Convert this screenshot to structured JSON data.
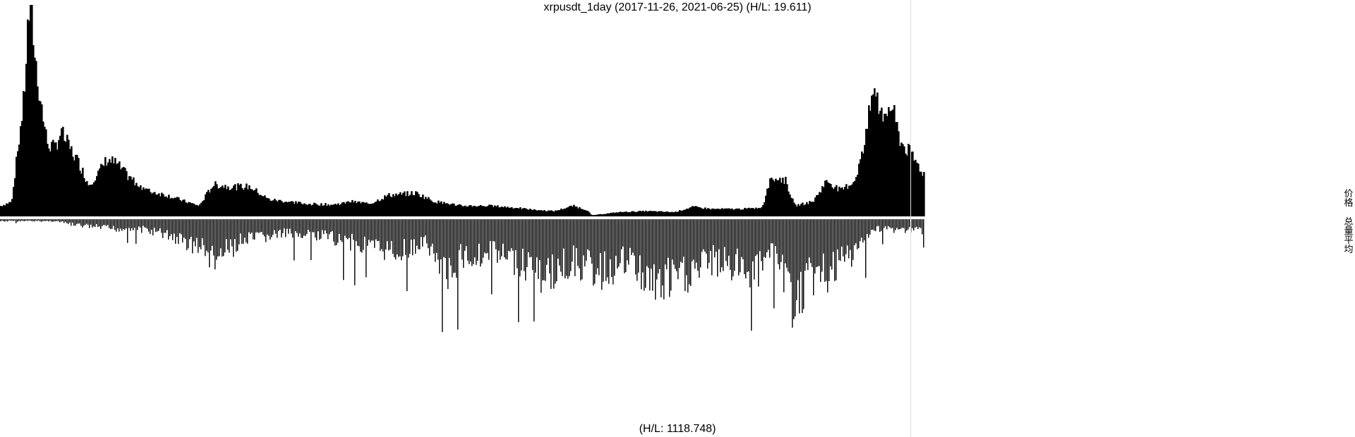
{
  "chart_data": {
    "type": "bar",
    "title": "xrpusdt_1day (2017-11-26, 2021-06-25) (H/L: 19.611)",
    "bottom_label": "(H/L: 1118.748)",
    "x_start": "2017-11-26",
    "x_end": "2021-06-25",
    "legend": {
      "price": "价格",
      "volume_avg": "总量平均"
    },
    "colors": {
      "bars": "#000000",
      "background": "#ffffff",
      "divider": "#dddddd"
    },
    "series": [
      {
        "name": "价格",
        "profile": [
          [
            0.0,
            0.05
          ],
          [
            0.012,
            0.07
          ],
          [
            0.018,
            0.3
          ],
          [
            0.025,
            0.55
          ],
          [
            0.03,
            0.95
          ],
          [
            0.033,
            1.0
          ],
          [
            0.037,
            0.75
          ],
          [
            0.043,
            0.55
          ],
          [
            0.05,
            0.35
          ],
          [
            0.058,
            0.32
          ],
          [
            0.065,
            0.4
          ],
          [
            0.075,
            0.32
          ],
          [
            0.085,
            0.25
          ],
          [
            0.095,
            0.15
          ],
          [
            0.105,
            0.2
          ],
          [
            0.115,
            0.27
          ],
          [
            0.125,
            0.25
          ],
          [
            0.14,
            0.18
          ],
          [
            0.16,
            0.12
          ],
          [
            0.18,
            0.1
          ],
          [
            0.2,
            0.07
          ],
          [
            0.215,
            0.05
          ],
          [
            0.23,
            0.15
          ],
          [
            0.25,
            0.14
          ],
          [
            0.27,
            0.14
          ],
          [
            0.29,
            0.08
          ],
          [
            0.31,
            0.07
          ],
          [
            0.33,
            0.06
          ],
          [
            0.36,
            0.055
          ],
          [
            0.38,
            0.07
          ],
          [
            0.4,
            0.06
          ],
          [
            0.42,
            0.1
          ],
          [
            0.45,
            0.11
          ],
          [
            0.47,
            0.07
          ],
          [
            0.5,
            0.05
          ],
          [
            0.53,
            0.05
          ],
          [
            0.56,
            0.04
          ],
          [
            0.58,
            0.03
          ],
          [
            0.6,
            0.025
          ],
          [
            0.62,
            0.05
          ],
          [
            0.635,
            0.03
          ],
          [
            0.64,
            0.005
          ],
          [
            0.67,
            0.02
          ],
          [
            0.7,
            0.025
          ],
          [
            0.73,
            0.02
          ],
          [
            0.75,
            0.045
          ],
          [
            0.77,
            0.035
          ],
          [
            0.8,
            0.035
          ],
          [
            0.825,
            0.04
          ],
          [
            0.835,
            0.19
          ],
          [
            0.85,
            0.17
          ],
          [
            0.86,
            0.05
          ],
          [
            0.88,
            0.07
          ],
          [
            0.895,
            0.17
          ],
          [
            0.91,
            0.12
          ],
          [
            0.925,
            0.17
          ],
          [
            0.935,
            0.32
          ],
          [
            0.945,
            0.6
          ],
          [
            0.955,
            0.48
          ],
          [
            0.965,
            0.52
          ],
          [
            0.975,
            0.35
          ],
          [
            0.985,
            0.3
          ],
          [
            1.0,
            0.2
          ]
        ]
      },
      {
        "name": "总量平均",
        "profile": [
          [
            0.0,
            0.01
          ],
          [
            0.06,
            0.01
          ],
          [
            0.08,
            0.03
          ],
          [
            0.12,
            0.05
          ],
          [
            0.15,
            0.05
          ],
          [
            0.18,
            0.08
          ],
          [
            0.2,
            0.12
          ],
          [
            0.22,
            0.15
          ],
          [
            0.23,
            0.22
          ],
          [
            0.26,
            0.12
          ],
          [
            0.3,
            0.08
          ],
          [
            0.33,
            0.08
          ],
          [
            0.36,
            0.1
          ],
          [
            0.4,
            0.15
          ],
          [
            0.44,
            0.17
          ],
          [
            0.46,
            0.12
          ],
          [
            0.47,
            0.2
          ],
          [
            0.48,
            0.3
          ],
          [
            0.5,
            0.2
          ],
          [
            0.53,
            0.18
          ],
          [
            0.56,
            0.22
          ],
          [
            0.59,
            0.3
          ],
          [
            0.62,
            0.22
          ],
          [
            0.65,
            0.28
          ],
          [
            0.68,
            0.22
          ],
          [
            0.71,
            0.35
          ],
          [
            0.74,
            0.3
          ],
          [
            0.77,
            0.22
          ],
          [
            0.8,
            0.25
          ],
          [
            0.82,
            0.28
          ],
          [
            0.84,
            0.18
          ],
          [
            0.86,
            0.45
          ],
          [
            0.88,
            0.3
          ],
          [
            0.9,
            0.28
          ],
          [
            0.92,
            0.2
          ],
          [
            0.95,
            0.05
          ],
          [
            1.0,
            0.06
          ]
        ]
      }
    ]
  }
}
